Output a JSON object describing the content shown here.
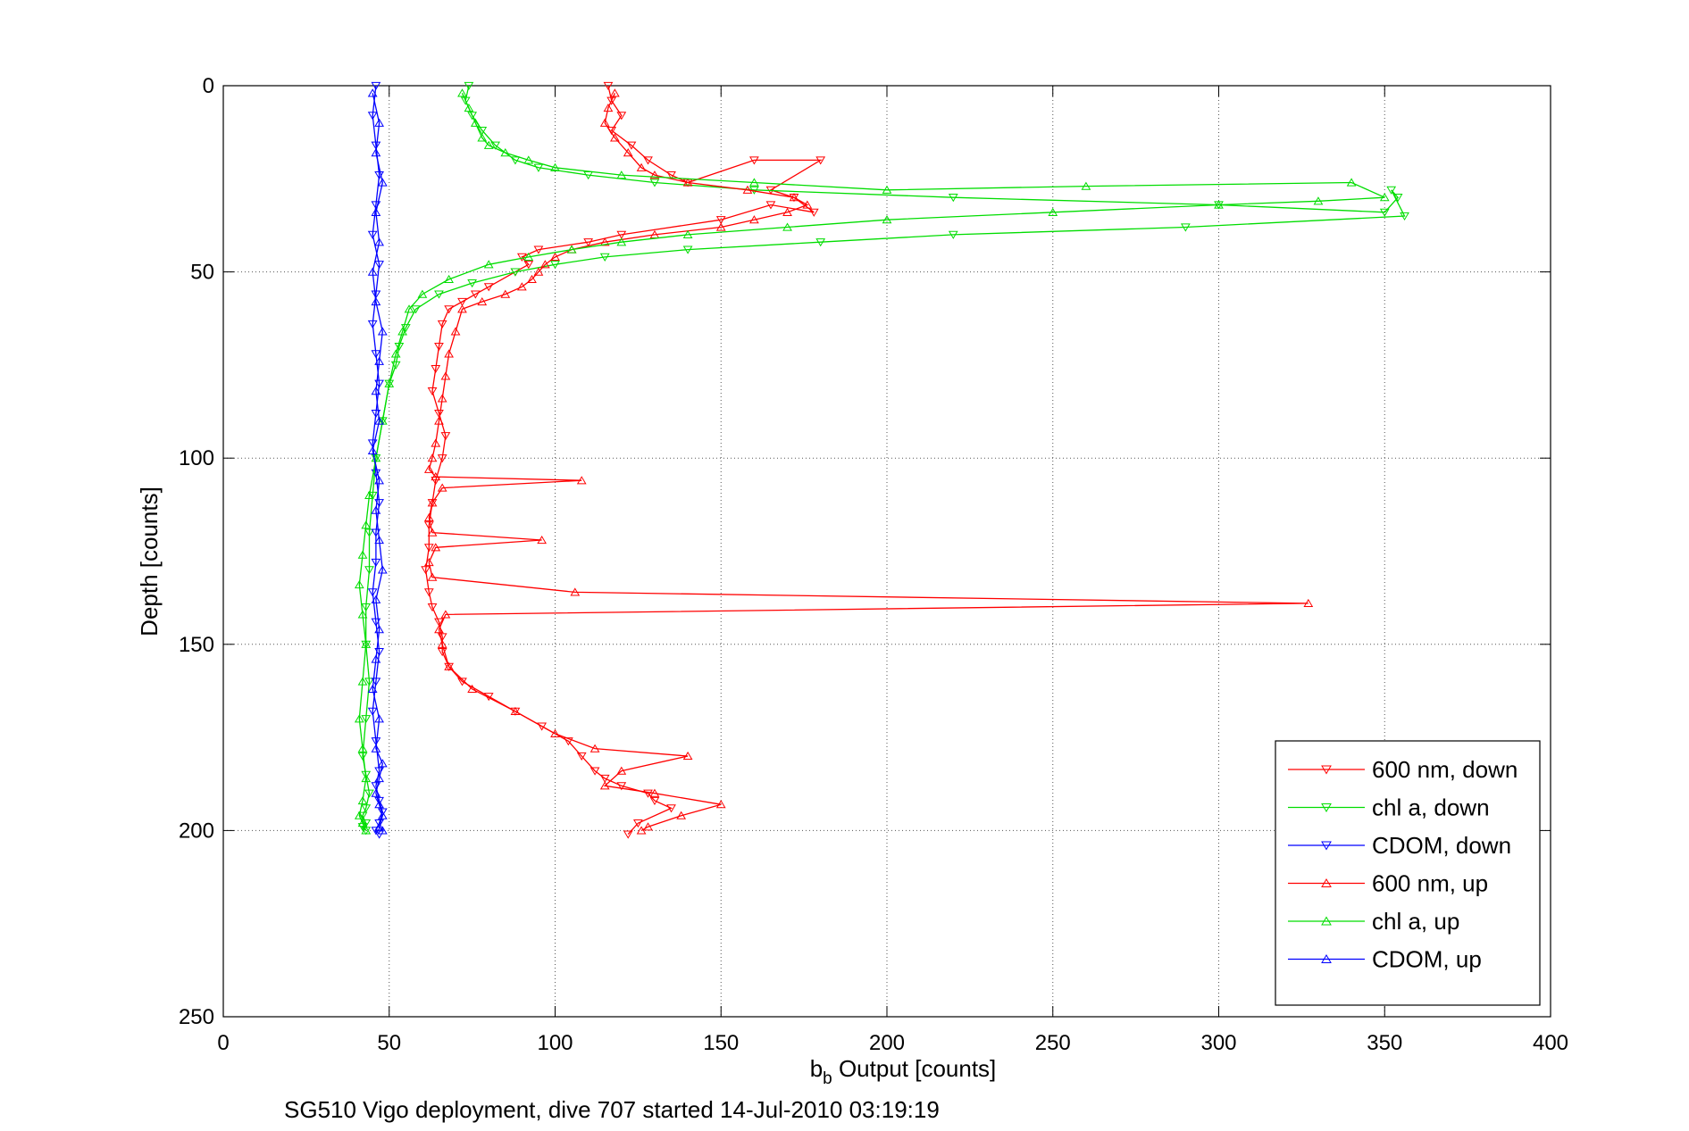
{
  "chart_data": {
    "type": "line",
    "xlabel_main": "b",
    "xlabel_sub": "b",
    "xlabel_rest": " Output [counts]",
    "ylabel": "Depth [counts]",
    "caption": "SG510 Vigo deployment, dive 707 started 14-Jul-2010 03:19:19",
    "xlim": [
      0,
      400
    ],
    "ylim": [
      0,
      250
    ],
    "y_reversed": true,
    "grid": true,
    "x_ticks": [
      0,
      50,
      100,
      150,
      200,
      250,
      300,
      350,
      400
    ],
    "y_ticks": [
      0,
      50,
      100,
      150,
      200,
      250
    ],
    "x_tick_labels": [
      "0",
      "50",
      "100",
      "150",
      "200",
      "250",
      "300",
      "350",
      "400"
    ],
    "y_tick_labels": [
      "0",
      "50",
      "100",
      "150",
      "200",
      "250"
    ],
    "legend_position": "bottom-right",
    "series": [
      {
        "name": "600 nm, down",
        "color": "#ff0000",
        "marker": "triangle-down",
        "x": [
          116,
          117,
          120,
          117,
          123,
          128,
          135,
          140,
          160,
          180,
          165,
          172,
          178,
          165,
          150,
          120,
          110,
          95,
          90,
          92,
          88,
          80,
          76,
          72,
          68,
          66,
          65,
          64,
          63,
          65,
          67,
          66,
          64,
          63,
          62,
          62,
          61,
          62,
          63,
          65,
          66,
          66,
          68,
          72,
          80,
          88,
          96,
          104,
          108,
          112,
          115,
          120,
          128,
          130,
          135,
          125,
          122
        ],
        "y": [
          0,
          4,
          8,
          12,
          16,
          20,
          24,
          26,
          20,
          20,
          28,
          30,
          34,
          32,
          36,
          40,
          42,
          44,
          46,
          48,
          50,
          54,
          56,
          58,
          60,
          64,
          70,
          76,
          82,
          88,
          94,
          100,
          106,
          112,
          118,
          124,
          130,
          136,
          140,
          144,
          148,
          152,
          156,
          160,
          164,
          168,
          172,
          176,
          180,
          184,
          186,
          188,
          190,
          192,
          194,
          198,
          201
        ]
      },
      {
        "name": "chl a, down",
        "color": "#00dd00",
        "marker": "triangle-down",
        "x": [
          74,
          73,
          75,
          78,
          82,
          88,
          95,
          110,
          130,
          160,
          220,
          300,
          350,
          354,
          352,
          356,
          290,
          220,
          180,
          140,
          115,
          100,
          88,
          75,
          65,
          58,
          55,
          53,
          52,
          50,
          48,
          46,
          45,
          44,
          44,
          43,
          43,
          44,
          43,
          42,
          43,
          44,
          43,
          42,
          43,
          42,
          43
        ],
        "y": [
          0,
          4,
          8,
          12,
          16,
          20,
          22,
          24,
          26,
          28,
          30,
          32,
          34,
          30,
          28,
          35,
          38,
          40,
          42,
          44,
          46,
          48,
          50,
          53,
          56,
          60,
          65,
          70,
          75,
          80,
          90,
          100,
          110,
          120,
          130,
          140,
          150,
          160,
          170,
          180,
          185,
          190,
          194,
          196,
          198,
          199,
          200
        ]
      },
      {
        "name": "CDOM, down",
        "color": "#0000ff",
        "marker": "triangle-down",
        "x": [
          46,
          45,
          46,
          47,
          46,
          45,
          47,
          46,
          45,
          46,
          47,
          46,
          45,
          46,
          47,
          46,
          46,
          45,
          46,
          47,
          46,
          45,
          46,
          47,
          46,
          47,
          48,
          47,
          46,
          47
        ],
        "y": [
          0,
          8,
          16,
          24,
          32,
          40,
          48,
          56,
          64,
          72,
          80,
          88,
          96,
          104,
          112,
          120,
          128,
          136,
          144,
          152,
          160,
          168,
          176,
          184,
          188,
          192,
          195,
          198,
          200,
          201
        ]
      },
      {
        "name": "600 nm, up",
        "color": "#ff0000",
        "marker": "triangle-up",
        "x": [
          118,
          116,
          115,
          118,
          122,
          126,
          130,
          140,
          158,
          172,
          176,
          170,
          160,
          150,
          130,
          115,
          105,
          100,
          97,
          95,
          93,
          90,
          85,
          78,
          72,
          70,
          68,
          67,
          66,
          65,
          64,
          63,
          62,
          64,
          108,
          66,
          63,
          62,
          63,
          96,
          64,
          62,
          63,
          106,
          327,
          67,
          65,
          66,
          68,
          75,
          88,
          100,
          112,
          140,
          120,
          115,
          130,
          150,
          138,
          128,
          126
        ],
        "y": [
          2,
          6,
          10,
          14,
          18,
          22,
          24,
          26,
          28,
          30,
          32,
          34,
          36,
          38,
          40,
          42,
          44,
          46,
          48,
          50,
          52,
          54,
          56,
          58,
          60,
          66,
          72,
          78,
          84,
          90,
          96,
          100,
          103,
          105,
          106,
          108,
          112,
          116,
          120,
          122,
          124,
          128,
          132,
          136,
          139,
          142,
          146,
          150,
          156,
          162,
          168,
          174,
          178,
          180,
          184,
          188,
          190,
          193,
          196,
          199,
          200
        ]
      },
      {
        "name": "chl a, up",
        "color": "#00dd00",
        "marker": "triangle-up",
        "x": [
          72,
          74,
          76,
          78,
          80,
          85,
          92,
          100,
          120,
          160,
          200,
          260,
          340,
          350,
          330,
          300,
          250,
          200,
          170,
          140,
          120,
          105,
          92,
          80,
          68,
          60,
          56,
          54,
          52,
          50,
          48,
          46,
          44,
          43,
          42,
          41,
          42,
          43,
          42,
          41,
          42,
          43,
          42,
          41,
          42,
          43
        ],
        "y": [
          2,
          6,
          10,
          14,
          16,
          18,
          20,
          22,
          24,
          26,
          28,
          27,
          26,
          30,
          31,
          32,
          34,
          36,
          38,
          40,
          42,
          44,
          46,
          48,
          52,
          56,
          60,
          66,
          72,
          80,
          90,
          100,
          110,
          118,
          126,
          134,
          142,
          150,
          160,
          170,
          178,
          186,
          192,
          196,
          198,
          200
        ]
      },
      {
        "name": "CDOM, up",
        "color": "#0000ff",
        "marker": "triangle-up",
        "x": [
          45,
          47,
          46,
          48,
          46,
          47,
          45,
          46,
          48,
          47,
          46,
          47,
          45,
          47,
          46,
          47,
          48,
          46,
          47,
          46,
          45,
          47,
          46,
          48,
          47,
          46,
          47,
          48,
          47,
          48
        ],
        "y": [
          2,
          10,
          18,
          26,
          34,
          42,
          50,
          58,
          66,
          74,
          82,
          90,
          98,
          106,
          114,
          122,
          130,
          138,
          146,
          154,
          162,
          170,
          178,
          182,
          186,
          190,
          193,
          196,
          199,
          200
        ]
      }
    ]
  }
}
